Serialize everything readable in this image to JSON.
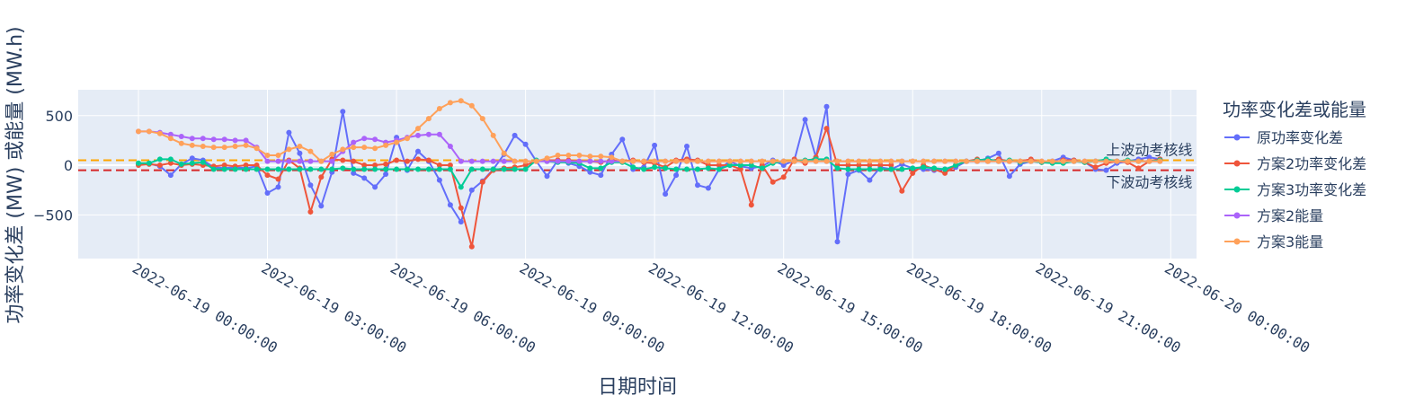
{
  "chart_data": {
    "type": "line",
    "xlabel": "日期时间",
    "ylabel": "功率变化差 (MW) 或能量 (MW.h)",
    "x_start": "2022-06-19 00:00:00",
    "x_step_minutes": 15,
    "xlim": [
      "2022-06-18 22:36:00",
      "2022-06-20 00:36:00"
    ],
    "x_ticks": [
      "2022-06-19 00:00:00",
      "2022-06-19 03:00:00",
      "2022-06-19 06:00:00",
      "2022-06-19 09:00:00",
      "2022-06-19 12:00:00",
      "2022-06-19 15:00:00",
      "2022-06-19 18:00:00",
      "2022-06-19 21:00:00",
      "2022-06-20 00:00:00"
    ],
    "ylim": [
      -940,
      760
    ],
    "y_ticks": [
      500,
      0,
      -500
    ],
    "y_tick_labels": [
      "500",
      "0",
      "−500"
    ],
    "grid": true,
    "legend_title": "功率变化差或能量",
    "legend_position": "right",
    "series": [
      {
        "name": "原功率变化差",
        "color": "#636efa",
        "x_indices": [
          0,
          1,
          2,
          3,
          4,
          5,
          6,
          7,
          8,
          9,
          10,
          11,
          12,
          13,
          14,
          15,
          16,
          17,
          18,
          19,
          20,
          21,
          22,
          23,
          24,
          25,
          26,
          27,
          28,
          29,
          30,
          31,
          32,
          33,
          34,
          35,
          36,
          37,
          38,
          39,
          40,
          41,
          42,
          43,
          44,
          45,
          46,
          47,
          48,
          49,
          50,
          51,
          52,
          53,
          54,
          55,
          56,
          57,
          58,
          59,
          60,
          61,
          62,
          63,
          64,
          65,
          66,
          67,
          68,
          69,
          70,
          71,
          72,
          73,
          74,
          75,
          76,
          77,
          78,
          79,
          80,
          81,
          82,
          83,
          84,
          85,
          86,
          87,
          88,
          89,
          90,
          91,
          92,
          93,
          94,
          95
        ],
        "values": [
          10,
          15,
          -10,
          -100,
          10,
          70,
          50,
          -20,
          -30,
          -20,
          -30,
          -10,
          -280,
          -220,
          330,
          120,
          -200,
          -410,
          -70,
          540,
          -80,
          -130,
          -220,
          -90,
          280,
          -50,
          140,
          40,
          -150,
          -400,
          -570,
          -250,
          -160,
          -40,
          110,
          300,
          210,
          40,
          -110,
          50,
          20,
          -10,
          -70,
          -100,
          110,
          260,
          -40,
          -20,
          200,
          -290,
          -100,
          190,
          -200,
          -230,
          -40,
          40,
          -10,
          -30,
          -10,
          50,
          0,
          50,
          460,
          80,
          590,
          -770,
          -90,
          -50,
          -150,
          -20,
          -40,
          10,
          -30,
          -40,
          -50,
          -40,
          -20,
          40,
          40,
          70,
          120,
          -110,
          10,
          40,
          30,
          40,
          80,
          50,
          30,
          -40,
          -50,
          20,
          40,
          60,
          80,
          60
        ]
      },
      {
        "name": "方案2功率变化差",
        "color": "#ef553b",
        "x_indices": [
          0,
          1,
          2,
          3,
          4,
          5,
          6,
          7,
          8,
          9,
          10,
          11,
          12,
          13,
          14,
          15,
          16,
          17,
          18,
          19,
          20,
          21,
          22,
          23,
          24,
          25,
          26,
          27,
          28,
          29,
          30,
          31,
          32,
          33,
          34,
          35,
          36,
          37,
          38,
          39,
          40,
          41,
          42,
          43,
          44,
          45,
          46,
          47,
          48,
          49,
          50,
          51,
          52,
          53,
          54,
          55,
          56,
          57,
          58,
          59,
          60,
          61,
          62,
          63,
          64,
          65,
          66,
          67,
          68,
          69,
          70,
          71,
          72,
          73,
          74,
          75,
          76,
          77,
          78,
          79,
          80,
          81,
          82,
          83,
          84,
          85,
          86,
          87,
          88,
          89,
          90,
          91,
          92,
          93,
          94,
          95
        ],
        "values": [
          0,
          10,
          0,
          20,
          0,
          10,
          0,
          -10,
          0,
          -10,
          0,
          0,
          -100,
          -140,
          50,
          -30,
          -470,
          -120,
          60,
          50,
          40,
          0,
          0,
          10,
          50,
          40,
          60,
          50,
          0,
          0,
          -430,
          -820,
          -170,
          -50,
          -30,
          -20,
          0,
          40,
          50,
          50,
          50,
          40,
          40,
          30,
          50,
          40,
          50,
          30,
          20,
          -20,
          50,
          60,
          50,
          0,
          0,
          0,
          -40,
          -400,
          0,
          -170,
          -120,
          60,
          20,
          80,
          370,
          0,
          0,
          0,
          0,
          0,
          0,
          -260,
          -80,
          0,
          -40,
          -80,
          0,
          40,
          60,
          40,
          60,
          40,
          40,
          60,
          30,
          30,
          50,
          50,
          30,
          -20,
          20,
          40,
          30,
          -30,
          40,
          60
        ]
      },
      {
        "name": "方案3功率变化差",
        "color": "#00cc96",
        "x_indices": [
          0,
          1,
          2,
          3,
          4,
          5,
          6,
          7,
          8,
          9,
          10,
          11,
          12,
          13,
          14,
          15,
          16,
          17,
          18,
          19,
          20,
          21,
          22,
          23,
          24,
          25,
          26,
          27,
          28,
          29,
          30,
          31,
          32,
          33,
          34,
          35,
          36,
          37,
          38,
          39,
          40,
          41,
          42,
          43,
          44,
          45,
          46,
          47,
          48,
          49,
          50,
          51,
          52,
          53,
          54,
          55,
          56,
          57,
          58,
          59,
          60,
          61,
          62,
          63,
          64,
          65,
          66,
          67,
          68,
          69,
          70,
          71,
          72,
          73,
          74,
          75,
          76,
          77,
          78,
          79,
          80,
          81,
          82,
          83,
          84,
          85,
          86,
          87,
          88,
          89,
          90,
          91,
          92,
          93,
          94,
          95
        ],
        "values": [
          20,
          20,
          60,
          60,
          10,
          20,
          30,
          -40,
          -40,
          -40,
          -40,
          -40,
          -40,
          -40,
          -40,
          -40,
          -40,
          -40,
          -40,
          -30,
          -40,
          -40,
          -40,
          -40,
          -40,
          -40,
          -40,
          -40,
          -40,
          -40,
          -220,
          -40,
          -40,
          -40,
          -40,
          -40,
          -40,
          50,
          40,
          30,
          30,
          20,
          -30,
          -30,
          30,
          30,
          -20,
          -40,
          -20,
          -30,
          -40,
          -40,
          -40,
          -30,
          -40,
          0,
          0,
          0,
          -30,
          20,
          40,
          40,
          50,
          60,
          60,
          -30,
          -40,
          -40,
          -40,
          -40,
          -40,
          -40,
          -30,
          -20,
          -30,
          -40,
          0,
          40,
          50,
          60,
          40,
          50,
          30,
          40,
          30,
          20,
          20,
          40,
          30,
          40,
          60,
          40,
          50,
          40,
          40,
          50
        ]
      },
      {
        "name": "方案2能量",
        "color": "#ab63fa",
        "x_indices": [
          0,
          1,
          2,
          3,
          4,
          5,
          6,
          7,
          8,
          9,
          10,
          11,
          12,
          13,
          14,
          15,
          16,
          17,
          18,
          19,
          20,
          21,
          22,
          23,
          24,
          25,
          26,
          27,
          28,
          29,
          30,
          31,
          32,
          33,
          34,
          35,
          36,
          37,
          38,
          39,
          40,
          41,
          42,
          43,
          44,
          45,
          46,
          47,
          48,
          49,
          50,
          51,
          52,
          53,
          54,
          55,
          56,
          57,
          58,
          59,
          60,
          61,
          62,
          63,
          64,
          65,
          66,
          67,
          68,
          69,
          70,
          71,
          72,
          73,
          74,
          75,
          76,
          77,
          78,
          79,
          80,
          81,
          82,
          83,
          84,
          85,
          86,
          87,
          88,
          89,
          90,
          91,
          92,
          93,
          94,
          95
        ],
        "values": [
          340,
          340,
          330,
          310,
          290,
          270,
          270,
          260,
          260,
          250,
          250,
          180,
          40,
          40,
          40,
          40,
          40,
          40,
          40,
          140,
          230,
          270,
          260,
          230,
          250,
          280,
          300,
          310,
          310,
          190,
          40,
          40,
          40,
          40,
          40,
          40,
          40,
          40,
          40,
          40,
          40,
          40,
          40,
          40,
          40,
          40,
          40,
          40,
          40,
          40,
          40,
          40,
          40,
          40,
          40,
          40,
          40,
          40,
          40,
          40,
          40,
          40,
          40,
          40,
          40,
          40,
          40,
          40,
          40,
          40,
          40,
          40,
          40,
          40,
          40,
          40,
          40,
          40,
          40,
          40,
          40,
          40,
          40,
          40,
          40,
          40,
          40,
          40,
          40,
          40,
          40,
          40,
          40,
          40,
          40,
          40
        ]
      },
      {
        "name": "方案3能量",
        "color": "#ffa15a",
        "x_indices": [
          0,
          1,
          2,
          3,
          4,
          5,
          6,
          7,
          8,
          9,
          10,
          11,
          12,
          13,
          14,
          15,
          16,
          17,
          18,
          19,
          20,
          21,
          22,
          23,
          24,
          25,
          26,
          27,
          28,
          29,
          30,
          31,
          32,
          33,
          34,
          35,
          36,
          37,
          38,
          39,
          40,
          41,
          42,
          43,
          44,
          45,
          46,
          47,
          48,
          49,
          50,
          51,
          52,
          53,
          54,
          55,
          56,
          57,
          58,
          59,
          60,
          61,
          62,
          63,
          64,
          65,
          66,
          67,
          68,
          69,
          70,
          71,
          72,
          73,
          74,
          75,
          76,
          77,
          78,
          79,
          80,
          81,
          82,
          83,
          84,
          85,
          86,
          87,
          88,
          89,
          90,
          91,
          92,
          93,
          94,
          95
        ],
        "values": [
          340,
          340,
          320,
          270,
          220,
          200,
          190,
          180,
          180,
          190,
          200,
          170,
          100,
          100,
          160,
          190,
          140,
          40,
          110,
          160,
          180,
          180,
          170,
          200,
          230,
          270,
          370,
          470,
          570,
          630,
          650,
          600,
          470,
          300,
          120,
          40,
          40,
          40,
          70,
          100,
          100,
          100,
          90,
          90,
          80,
          40,
          40,
          40,
          40,
          40,
          40,
          40,
          40,
          40,
          40,
          40,
          40,
          40,
          40,
          40,
          40,
          40,
          40,
          40,
          40,
          40,
          40,
          40,
          40,
          40,
          40,
          40,
          40,
          40,
          40,
          40,
          40,
          40,
          40,
          40,
          40,
          40,
          40,
          40,
          40,
          40,
          40,
          40,
          40,
          40,
          40,
          40,
          40,
          40,
          40,
          40
        ]
      }
    ],
    "reference_lines": [
      {
        "label": "上波动考核线",
        "y": 50,
        "color": "#ffa500",
        "dash": "dash"
      },
      {
        "label": "下波动考核线",
        "y": -50,
        "color": "#d62728",
        "dash": "dash"
      }
    ]
  }
}
